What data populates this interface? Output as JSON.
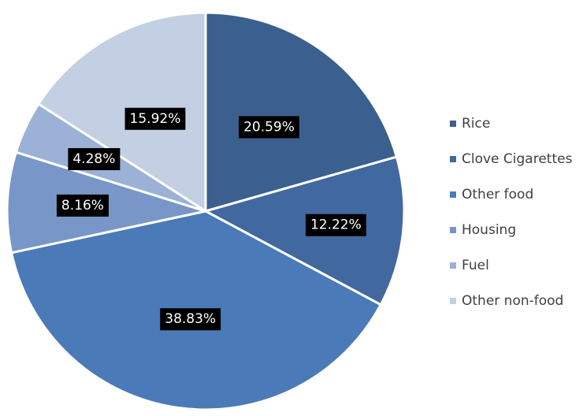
{
  "chart_data": {
    "type": "pie",
    "title": "",
    "legend_position": "right",
    "start_angle_deg": 0,
    "direction": "clockwise",
    "slices": [
      {
        "label": "Rice",
        "value": 20.59,
        "display": "20.59%",
        "color": "#3B5F8F"
      },
      {
        "label": "Clove Cigarettes",
        "value": 12.22,
        "display": "12.22%",
        "color": "#41689F"
      },
      {
        "label": "Other food",
        "value": 38.83,
        "display": "38.83%",
        "color": "#4A7AB8"
      },
      {
        "label": "Housing",
        "value": 8.16,
        "display": "8.16%",
        "color": "#7897C8"
      },
      {
        "label": "Fuel",
        "value": 4.28,
        "display": "4.28%",
        "color": "#9BB1D6"
      },
      {
        "label": "Other non-food",
        "value": 15.92,
        "display": "15.92%",
        "color": "#C3CFE3"
      }
    ]
  }
}
